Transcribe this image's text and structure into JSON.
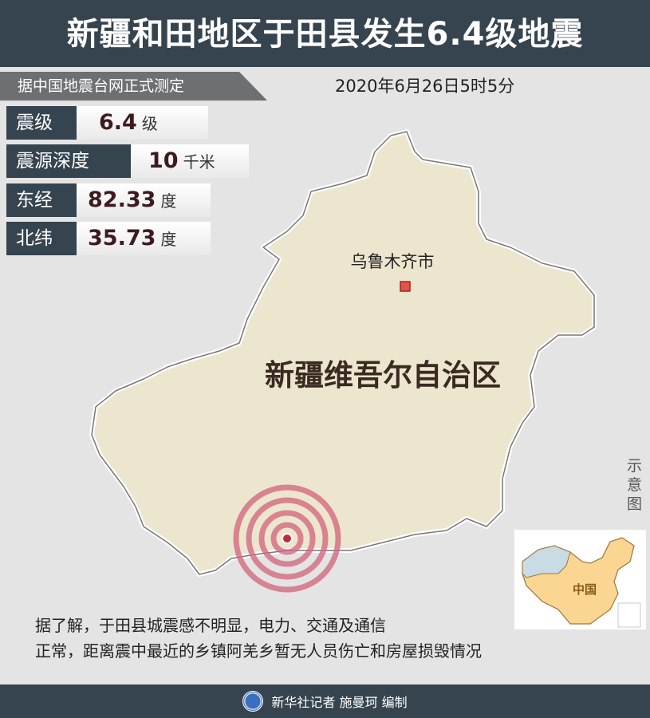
{
  "title": "新疆和田地区于田县发生6.4级地震",
  "source_note": "据中国地震台网正式测定",
  "datetime": "2020年6月26日5时5分",
  "facts": [
    {
      "label": "震级",
      "value": "6.4",
      "unit": "级"
    },
    {
      "label": "震源深度",
      "value": "10",
      "unit": "千米"
    },
    {
      "label": "东经",
      "value": "82.33",
      "unit": "度"
    },
    {
      "label": "北纬",
      "value": "35.73",
      "unit": "度"
    }
  ],
  "map": {
    "region_label": "新疆维吾尔自治区",
    "city_label": "乌鲁木齐市",
    "region_fill": "#ede6cf",
    "epicenter_color": "#c8283c",
    "hint": "示意图",
    "inset_label": "中国"
  },
  "description": [
    "据了解，于田县城震感不明显，电力、交通及通信",
    "正常，距离震中最近的乡镇阿羌乡暂无人员伤亡和房屋损毁情况"
  ],
  "footer": "新华社记者 施曼珂 编制",
  "colors": {
    "header": "#36444f",
    "background": "#e4e4e4",
    "value_text": "#3e1a1e"
  }
}
